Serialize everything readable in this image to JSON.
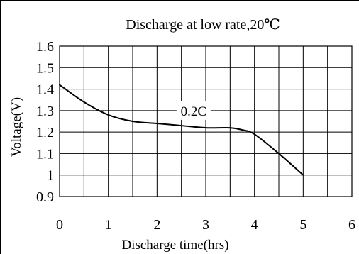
{
  "chart_data": {
    "type": "line",
    "title": "Discharge at low rate,20℃",
    "xlabel": "Discharge time(hrs)",
    "ylabel": "Voltage(V)",
    "xlim": [
      0,
      6
    ],
    "ylim": [
      0.9,
      1.6
    ],
    "x_ticks": [
      0,
      1,
      2,
      3,
      4,
      5,
      6
    ],
    "y_ticks": [
      0.9,
      1,
      1.1,
      1.2,
      1.3,
      1.4,
      1.5,
      1.6
    ],
    "x_tick_labels": [
      "0",
      "1",
      "2",
      "3",
      "4",
      "5",
      "6"
    ],
    "y_tick_labels": [
      "0.9",
      "1",
      "1.1",
      "1.2",
      "1.3",
      "1.4",
      "1.5",
      "1.6"
    ],
    "grid": true,
    "series": [
      {
        "name": "0.2C",
        "color": "#000000",
        "x": [
          0,
          0.5,
          1,
          1.5,
          2,
          2.5,
          3,
          3.5,
          3.75,
          4,
          4.5,
          5
        ],
        "y": [
          1.42,
          1.34,
          1.28,
          1.25,
          1.24,
          1.23,
          1.22,
          1.22,
          1.21,
          1.19,
          1.1,
          1.0
        ]
      }
    ],
    "annotations": [
      {
        "text": "0.2C",
        "x": 2.75,
        "y": 1.3
      }
    ]
  }
}
